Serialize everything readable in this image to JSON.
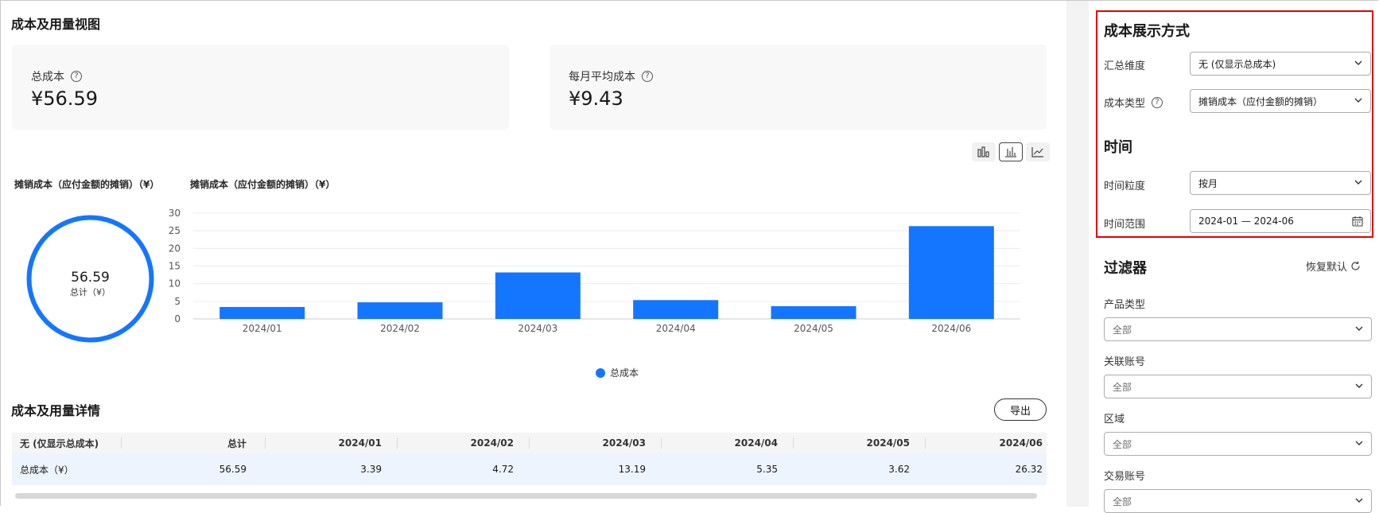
{
  "overview": {
    "title": "成本及用量视图",
    "total_cost": {
      "label": "总成本",
      "value": "¥56.59"
    },
    "monthly_avg": {
      "label": "每月平均成本",
      "value": "¥9.43"
    }
  },
  "view_switch": [
    "grouped-bar-icon",
    "bar-icon",
    "line-icon"
  ],
  "donut": {
    "label": "摊销成本（应付金额的摊销）（¥）",
    "value": "56.59",
    "caption": "总计（¥）",
    "color": "#1476ff"
  },
  "bar_chart_label": "摊销成本（应付金额的摊销）（¥）",
  "chart_data": {
    "type": "bar",
    "categories": [
      "2024/01",
      "2024/02",
      "2024/03",
      "2024/04",
      "2024/05",
      "2024/06"
    ],
    "series": [
      {
        "name": "总成本",
        "values": [
          3.39,
          4.72,
          13.19,
          5.35,
          3.62,
          26.32
        ]
      }
    ],
    "ylabel": "摊销成本（应付金额的摊销）（¥）",
    "ylim": [
      0,
      30
    ],
    "yticks": [
      0,
      5,
      10,
      15,
      20,
      25,
      30
    ],
    "grid": true,
    "legend": "bottom",
    "color": "#1476ff"
  },
  "details": {
    "title": "成本及用量详情",
    "export_label": "导出",
    "headers": [
      "无 (仅显示总成本)",
      "总计",
      "2024/01",
      "2024/02",
      "2024/03",
      "2024/04",
      "2024/05",
      "2024/06"
    ],
    "rows": [
      [
        "总成本（¥）",
        "56.59",
        "3.39",
        "4.72",
        "13.19",
        "5.35",
        "3.62",
        "26.32"
      ]
    ]
  },
  "sidebar": {
    "display_title": "成本展示方式",
    "summary_label": "汇总维度",
    "summary_value": "无 (仅显示总成本)",
    "cost_type_label": "成本类型",
    "cost_type_value": "摊销成本（应付金额的摊销）",
    "time_title": "时间",
    "granularity_label": "时间粒度",
    "granularity_value": "按月",
    "range_label": "时间范围",
    "range_value": "2024-01 — 2024-06",
    "filter_title": "过滤器",
    "reset_label": "恢复默认",
    "filters": [
      {
        "label": "产品类型",
        "value": "全部"
      },
      {
        "label": "关联账号",
        "value": "全部"
      },
      {
        "label": "区域",
        "value": "全部"
      },
      {
        "label": "交易账号",
        "value": "全部"
      }
    ]
  }
}
